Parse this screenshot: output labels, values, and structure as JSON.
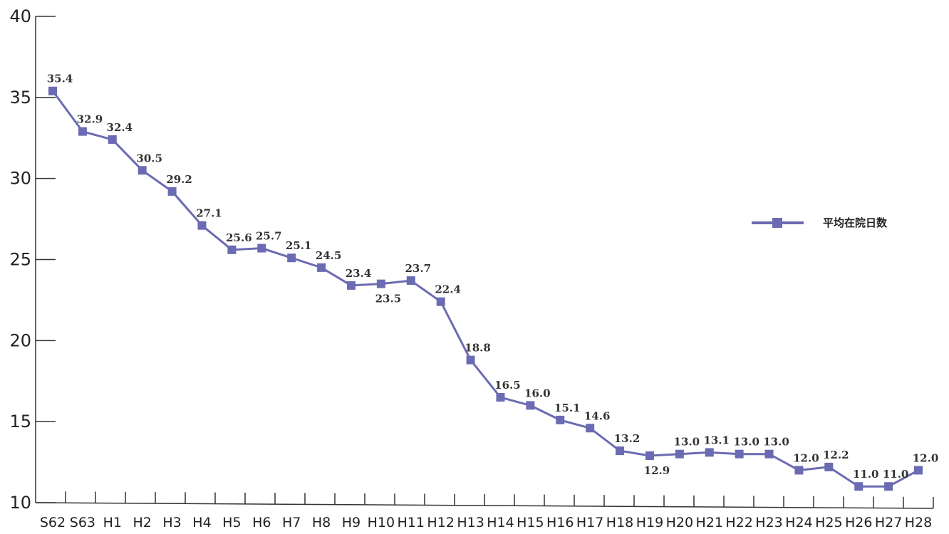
{
  "chart_data": {
    "type": "line",
    "title": "",
    "xlabel": "",
    "ylabel": "",
    "ylim": [
      10,
      40
    ],
    "yticks": [
      10,
      15,
      20,
      25,
      30,
      35,
      40
    ],
    "categories": [
      "S62",
      "S63",
      "H1",
      "H2",
      "H3",
      "H4",
      "H5",
      "H6",
      "H7",
      "H8",
      "H9",
      "H10",
      "H11",
      "H12",
      "H13",
      "H14",
      "H15",
      "H16",
      "H17",
      "H18",
      "H19",
      "H20",
      "H21",
      "H22",
      "H23",
      "H24",
      "H25",
      "H26",
      "H27",
      "H28"
    ],
    "series": [
      {
        "name": "平均在院日数",
        "color": "#6b6bb3",
        "values": [
          35.4,
          32.9,
          32.4,
          30.5,
          29.2,
          27.1,
          25.6,
          25.7,
          25.1,
          24.5,
          23.4,
          23.5,
          23.7,
          22.4,
          18.8,
          16.5,
          16.0,
          15.1,
          14.6,
          13.2,
          12.9,
          13.0,
          13.1,
          13.0,
          13.0,
          12.0,
          12.2,
          11.0,
          11.0,
          12.0
        ]
      }
    ],
    "grid": false,
    "legend_position": "right"
  }
}
